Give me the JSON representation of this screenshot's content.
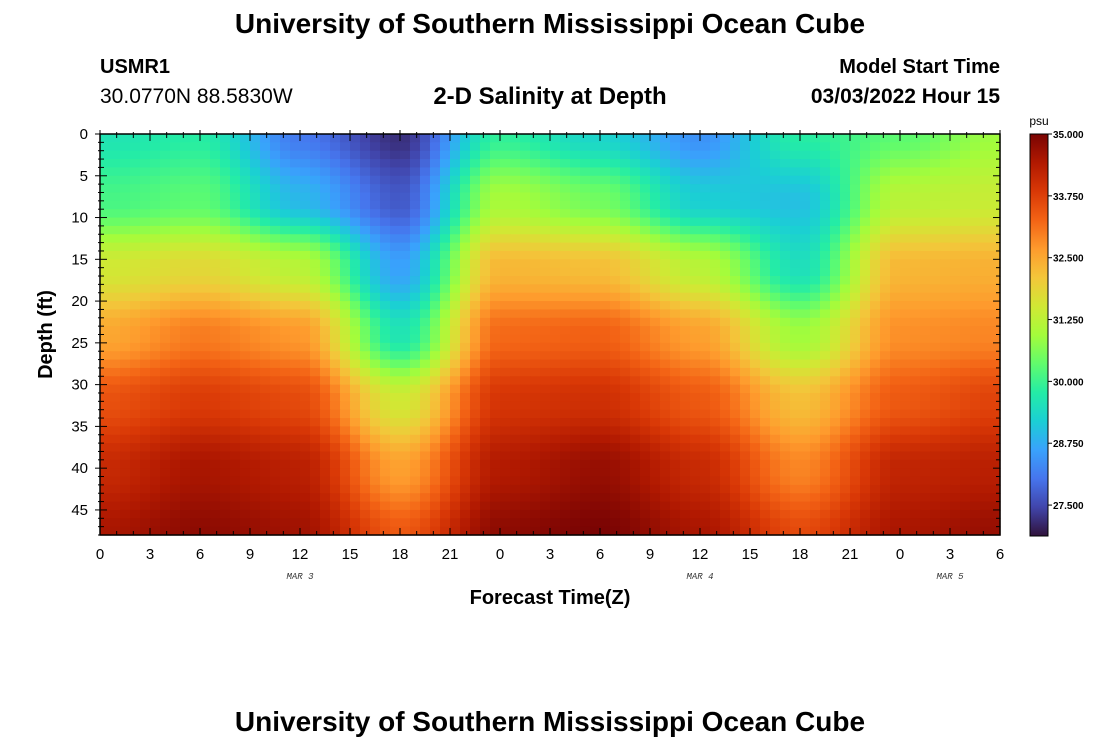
{
  "header": {
    "title": "University of Southern Mississippi Ocean Cube",
    "station_id": "USMR1",
    "station_coords": "30.0770N  88.5830W",
    "plot_title": "2-D Salinity at Depth",
    "model_start_label": "Model Start Time",
    "model_start_value": "03/03/2022 Hour 15"
  },
  "footer": {
    "title": "University of Southern Mississippi Ocean Cube"
  },
  "chart_data": {
    "type": "heatmap",
    "xlabel": "Forecast Time(Z)",
    "ylabel": "Depth (ft)",
    "x_tick_labels": [
      "0",
      "3",
      "6",
      "9",
      "12",
      "15",
      "18",
      "21",
      "0",
      "3",
      "6",
      "9",
      "12",
      "15",
      "18",
      "21",
      "0",
      "3",
      "6"
    ],
    "day_labels": [
      {
        "label": "MAR 3",
        "tick_index": 4
      },
      {
        "label": "MAR 4",
        "tick_index": 12
      },
      {
        "label": "MAR 5",
        "tick_index": 17
      }
    ],
    "ylim": [
      0,
      48
    ],
    "y_ticks": [
      0,
      5,
      10,
      15,
      20,
      25,
      30,
      35,
      40,
      45
    ],
    "colorbar": {
      "unit": "psu",
      "min": 26.875,
      "max": 35.0,
      "tick_labels": [
        "35.000",
        "33.750",
        "32.500",
        "31.250",
        "30.000",
        "28.750",
        "27.500"
      ],
      "tick_values": [
        35.0,
        33.75,
        32.5,
        31.25,
        30.0,
        28.75,
        27.5
      ]
    },
    "colormap": [
      "#30123b",
      "#4145ab",
      "#4675ed",
      "#39a2fc",
      "#1bcfd4",
      "#24eca6",
      "#61fc6c",
      "#a4fc3b",
      "#d1e834",
      "#f3c63a",
      "#fe9b2d",
      "#f36315",
      "#d93806",
      "#b11901",
      "#7a0403"
    ],
    "salinity_field": {
      "note_units": "psu",
      "x_hours_from_mar3_00z": [
        0,
        6,
        12,
        18,
        24,
        30,
        36,
        42,
        48,
        54
      ],
      "depth_ft": [
        0,
        8,
        16,
        24,
        32,
        40,
        48
      ],
      "values": [
        [
          29.6,
          29.8,
          28.1,
          27.2,
          29.9,
          29.3,
          28.4,
          29.8,
          30.3,
          30.9
        ],
        [
          30.1,
          30.3,
          28.9,
          27.7,
          31.0,
          30.5,
          29.2,
          29.0,
          31.2,
          31.4
        ],
        [
          31.5,
          31.8,
          31.2,
          28.6,
          32.3,
          32.2,
          31.2,
          29.5,
          32.3,
          32.4
        ],
        [
          32.5,
          33.0,
          32.7,
          29.6,
          33.2,
          33.3,
          32.6,
          30.9,
          32.8,
          32.9
        ],
        [
          33.5,
          33.8,
          33.6,
          31.5,
          33.9,
          34.0,
          33.4,
          32.2,
          33.4,
          33.7
        ],
        [
          34.1,
          34.5,
          34.3,
          32.6,
          34.4,
          34.7,
          34.1,
          32.9,
          34.2,
          34.3
        ],
        [
          34.5,
          34.8,
          34.6,
          33.4,
          34.8,
          35.0,
          34.5,
          33.6,
          34.5,
          34.7
        ]
      ]
    }
  }
}
